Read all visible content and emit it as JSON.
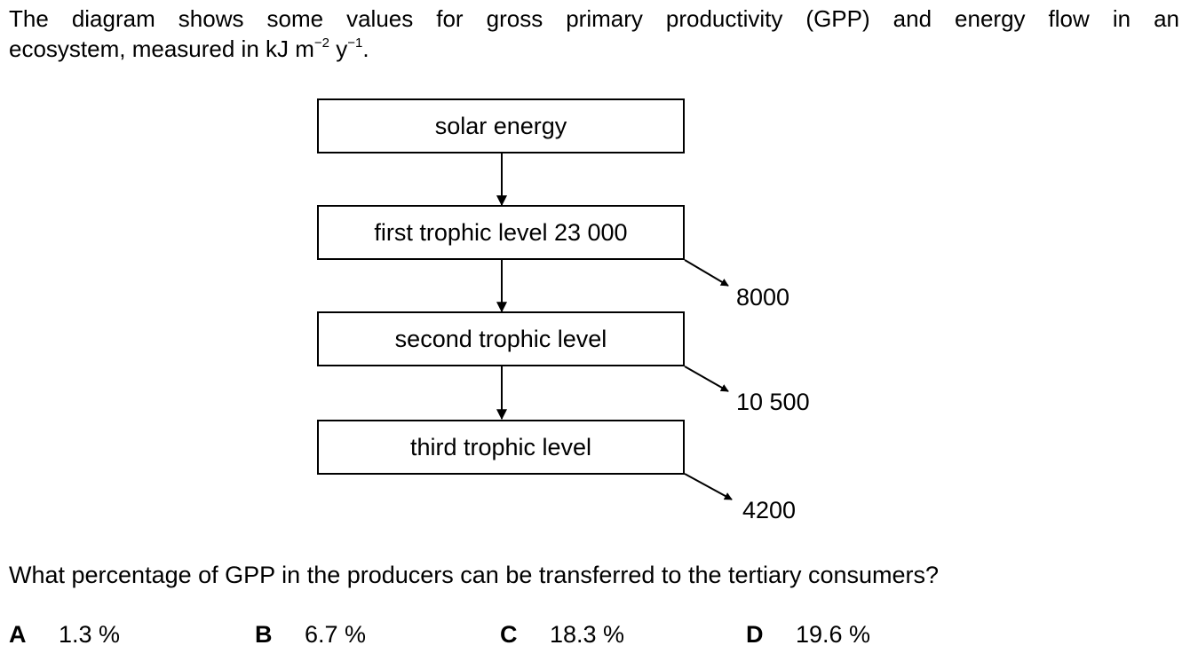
{
  "intro": {
    "line1": "The diagram shows some values for gross primary productivity (GPP) and energy flow in an",
    "line2_prefix": "ecosystem, measured in kJ m",
    "exp1": "−2",
    "mid": " y",
    "exp2": "−1",
    "end": "."
  },
  "diagram": {
    "boxes": [
      {
        "label": "solar energy"
      },
      {
        "label": "first trophic level 23 000"
      },
      {
        "label": "second trophic level"
      },
      {
        "label": "third trophic level"
      }
    ],
    "losses": [
      "8000",
      "10 500",
      "4200"
    ]
  },
  "question": "What percentage of GPP in the producers can be transferred to the tertiary consumers?",
  "options": [
    {
      "letter": "A",
      "text": "1.3 %"
    },
    {
      "letter": "B",
      "text": "6.7 %"
    },
    {
      "letter": "C",
      "text": "18.3 %"
    },
    {
      "letter": "D",
      "text": "19.6 %"
    }
  ]
}
